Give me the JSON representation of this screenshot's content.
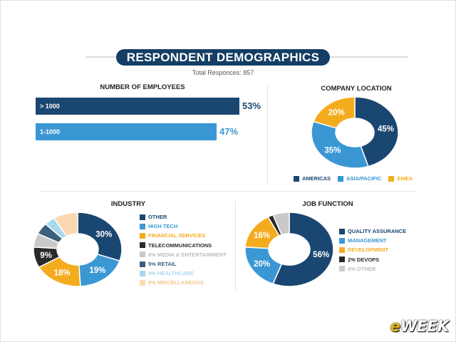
{
  "header": {
    "title": "RESPONDENT DEMOGRAPHICS",
    "subtitle": "Total Responces: 857"
  },
  "colors": {
    "navy": "#1a4771",
    "blue": "#3a97d4",
    "orange": "#f4ac1f",
    "black": "#2a2a2a",
    "grey": "#c9c9c9",
    "slate": "#3b5f7d",
    "lightblue": "#a8d8ef",
    "peach": "#fbd9b0"
  },
  "chart_data": [
    {
      "type": "bar",
      "title": "NUMBER OF EMPLOYEES",
      "categories": [
        "> 1000",
        "1-1000"
      ],
      "values": [
        53,
        47
      ],
      "labels": [
        "53%",
        "47%"
      ],
      "colors": [
        "#1a4771",
        "#3a97d4"
      ]
    },
    {
      "type": "pie",
      "title": "COMPANY LOCATION",
      "categories": [
        "AMERICAS",
        "ASIA/PACIFIC",
        "EMEA"
      ],
      "values": [
        45,
        35,
        20
      ],
      "labels": [
        "45%",
        "35%",
        "20%"
      ],
      "colors": [
        "#1a4771",
        "#3a97d4",
        "#f4ac1f"
      ],
      "legend": "bottom"
    },
    {
      "type": "pie",
      "title": "INDUSTRY",
      "categories": [
        "OTHER",
        "HIGH TECH",
        "FINANCIAL SERVICES",
        "TELECOMMUNICATIONS",
        "MEDIA & ENTERTAINMENT",
        "RETAIL",
        "HEALTHCARE",
        "MISCELLANEOUS"
      ],
      "values": [
        30,
        19,
        18,
        9,
        6,
        5,
        4,
        9
      ],
      "labels": [
        "30%",
        "19%",
        "18%",
        "9%",
        "",
        "",
        "",
        ""
      ],
      "legend_labels": [
        "OTHER",
        "HIGH TECH",
        "FINANCIAL SERVICES",
        "TELECOMMUNICATIONS",
        "6% MEDIA & ENTERTAINMENT",
        "5% RETAIL",
        "4% HEALTHCARE",
        "9% MISCELLANEOUS"
      ],
      "colors": [
        "#1a4771",
        "#3a97d4",
        "#f4ac1f",
        "#2a2a2a",
        "#c9c9c9",
        "#3b5f7d",
        "#a8d8ef",
        "#fbd9b0"
      ],
      "legend": "right"
    },
    {
      "type": "pie",
      "title": "JOB FUNCTION",
      "categories": [
        "QUALITY ASSURANCE",
        "MANAGEMENT",
        "DEVELOPMENT",
        "DEVOPS",
        "OTHER"
      ],
      "values": [
        56,
        20,
        16,
        2,
        6
      ],
      "labels": [
        "56%",
        "20%",
        "16%",
        "",
        ""
      ],
      "legend_labels": [
        "QUALITY ASSURANCE",
        "MANAGEMENT",
        "DEVELOPMENT",
        "2% DEVOPS",
        "6% OTHER"
      ],
      "colors": [
        "#1a4771",
        "#3a97d4",
        "#f4ac1f",
        "#2a2a2a",
        "#c9c9c9"
      ],
      "legend": "right"
    }
  ],
  "logo": {
    "brand": "eWEEK"
  }
}
